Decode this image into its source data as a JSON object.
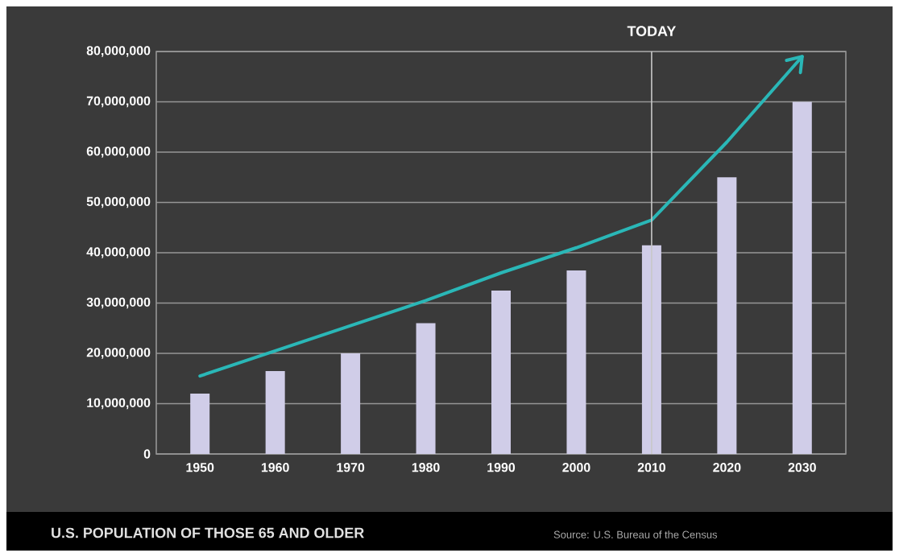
{
  "chart_data": {
    "type": "bar",
    "title": "U.S. POPULATION OF THOSE 65 AND OLDER",
    "annotations": [
      "Source: U.S. Bureau of the Census"
    ],
    "categories": [
      "1950",
      "1960",
      "1970",
      "1980",
      "1990",
      "2000",
      "2010",
      "2020",
      "2030"
    ],
    "series": [
      {
        "color": "#d0cde8",
        "values": [
          12000000,
          16500000,
          20000000,
          26000000,
          32500000,
          36500000,
          41500000,
          55000000,
          70000000
        ]
      },
      {
        "type": "line",
        "color": "#2ab7b7",
        "marker": "none",
        "values": [
          15500000,
          20500000,
          25500000,
          30500000,
          36000000,
          41000000,
          46500000,
          62000000,
          79000000
        ]
      }
    ],
    "ylim": [
      0,
      80000000
    ],
    "yticks": [
      {
        "value": 0,
        "label": "0"
      },
      {
        "value": 10000000,
        "label": "10,000,000"
      },
      {
        "value": 20000000,
        "label": "20,000,000"
      },
      {
        "value": 30000000,
        "label": "30,000,000"
      },
      {
        "value": 40000000,
        "label": "40,000,000"
      },
      {
        "value": 50000000,
        "label": "50,000,000"
      },
      {
        "value": 60000000,
        "label": "60,000,000"
      },
      {
        "value": 70000000,
        "label": "70,000,000"
      },
      {
        "value": 80000000,
        "label": "80,000,000"
      }
    ],
    "grid": "y",
    "ref_lines": [
      {
        "axis": "x",
        "value": "2010",
        "label": "TODAY",
        "color": "#c8c8c8"
      }
    ]
  }
}
